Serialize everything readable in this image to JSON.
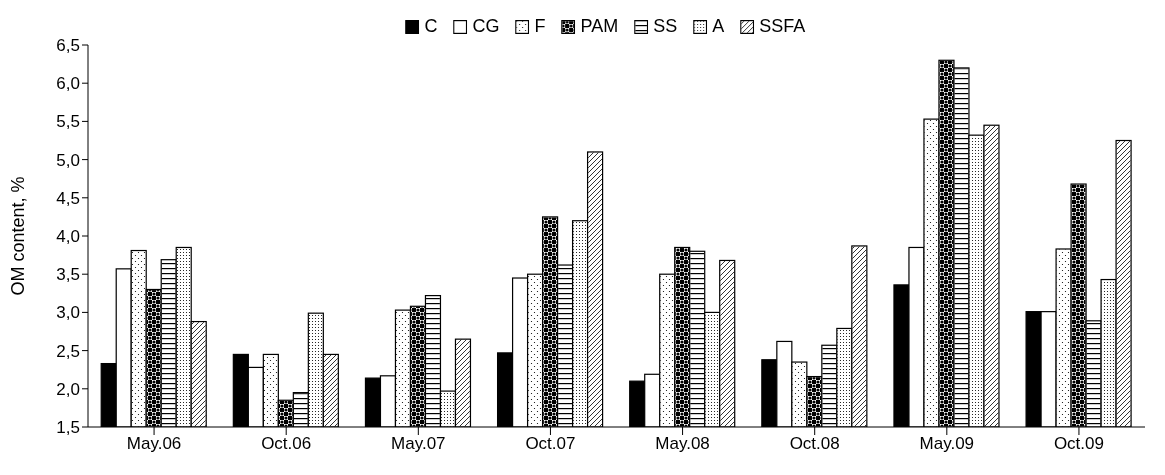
{
  "chart_data": {
    "type": "bar",
    "ylabel": "OM content, %",
    "categories": [
      "May.06",
      "Oct.06",
      "May.07",
      "Oct.07",
      "May.08",
      "Oct.08",
      "May.09",
      "Oct.09"
    ],
    "series": [
      {
        "name": "C",
        "color": "#000000",
        "values": [
          2.33,
          2.45,
          2.14,
          2.47,
          2.1,
          2.38,
          3.36,
          3.01
        ]
      },
      {
        "name": "CG",
        "color": "#ffffff",
        "values": [
          3.57,
          2.28,
          2.17,
          3.45,
          2.19,
          2.62,
          3.85,
          3.01
        ]
      },
      {
        "name": "F",
        "color": "#ffffff",
        "values": [
          3.81,
          2.45,
          3.03,
          3.5,
          3.5,
          2.35,
          5.53,
          3.83
        ]
      },
      {
        "name": "PAM",
        "color": "#ffffff",
        "values": [
          3.3,
          1.85,
          3.08,
          4.25,
          3.85,
          2.16,
          6.3,
          4.68
        ]
      },
      {
        "name": "SS",
        "color": "#ffffff",
        "values": [
          3.69,
          1.95,
          3.22,
          3.62,
          3.8,
          2.57,
          6.2,
          2.89
        ]
      },
      {
        "name": "A",
        "color": "#ffffff",
        "values": [
          3.85,
          2.99,
          1.97,
          4.2,
          3.0,
          2.79,
          5.32,
          3.43
        ]
      },
      {
        "name": "SSFA",
        "color": "#ffffff",
        "values": [
          2.88,
          2.45,
          2.65,
          5.1,
          3.68,
          3.87,
          5.45,
          5.25
        ]
      }
    ],
    "ylim": [
      1.5,
      6.5
    ],
    "yticks": [
      {
        "value": 1.5,
        "label": "1,5"
      },
      {
        "value": 2.0,
        "label": "2,0"
      },
      {
        "value": 2.5,
        "label": "2,5"
      },
      {
        "value": 3.0,
        "label": "3,0"
      },
      {
        "value": 3.5,
        "label": "3,5"
      },
      {
        "value": 4.0,
        "label": "4,0"
      },
      {
        "value": 4.5,
        "label": "4,5"
      },
      {
        "value": 5.0,
        "label": "5,0"
      },
      {
        "value": 5.5,
        "label": "5,5"
      },
      {
        "value": 6.0,
        "label": "6,0"
      },
      {
        "value": 6.5,
        "label": "6,5"
      }
    ],
    "grid": false,
    "legend": "top"
  }
}
